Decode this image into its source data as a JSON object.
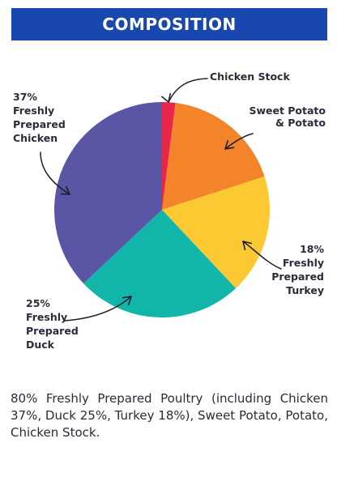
{
  "header": {
    "title": "COMPOSITION"
  },
  "chart_data": {
    "type": "pie",
    "slices": [
      {
        "label": "Chicken Stock",
        "value": 2,
        "color": "#e8264a",
        "label_lines": [
          "Chicken Stock"
        ]
      },
      {
        "label": "Sweet Potato & Potato",
        "value": 18,
        "color": "#f3842a",
        "label_lines": [
          "Sweet Potato",
          "& Potato"
        ]
      },
      {
        "label": "Freshly Prepared Turkey",
        "value": 18,
        "color": "#fdc932",
        "label_lines": [
          "18%",
          "Freshly",
          "Prepared",
          "Turkey"
        ]
      },
      {
        "label": "Freshly Prepared Duck",
        "value": 25,
        "color": "#12b5a9",
        "label_lines": [
          "25%",
          "Freshly",
          "Prepared",
          "Duck"
        ]
      },
      {
        "label": "Freshly Prepared Chicken",
        "value": 37,
        "color": "#5b55a6",
        "label_lines": [
          "37%",
          "Freshly",
          "Prepared",
          "Chicken"
        ]
      }
    ]
  },
  "description": "80% Freshly Prepared Poultry (including Chicken 37%, Duck 25%, Turkey 18%), Sweet Potato, Potato, Chicken Stock."
}
